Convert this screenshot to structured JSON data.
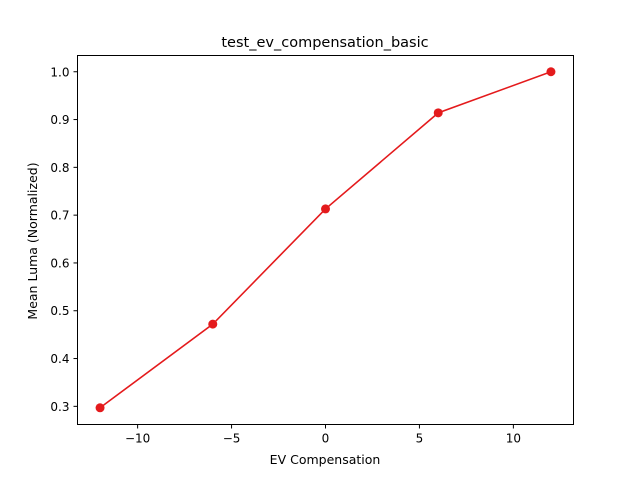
{
  "chart_data": {
    "type": "line",
    "title": "test_ev_compensation_basic",
    "xlabel": "EV Compensation",
    "ylabel": "Mean Luma (Normalized)",
    "xlim": [
      -13.2,
      13.2
    ],
    "ylim": [
      0.262,
      1.034
    ],
    "xticks": [
      -10,
      -5,
      0,
      5,
      10
    ],
    "xtick_labels": [
      "−10",
      "−5",
      "0",
      "5",
      "10"
    ],
    "yticks": [
      0.3,
      0.4,
      0.5,
      0.6,
      0.7,
      0.8,
      0.9,
      1.0
    ],
    "ytick_labels": [
      "0.3",
      "0.4",
      "0.5",
      "0.6",
      "0.7",
      "0.8",
      "0.9",
      "1.0"
    ],
    "grid": false,
    "series": [
      {
        "x": [
          -12,
          -6,
          0,
          6,
          12
        ],
        "y": [
          0.297,
          0.472,
          0.713,
          0.914,
          1.0
        ],
        "color": "#e41a1c",
        "marker": "circle"
      }
    ]
  }
}
